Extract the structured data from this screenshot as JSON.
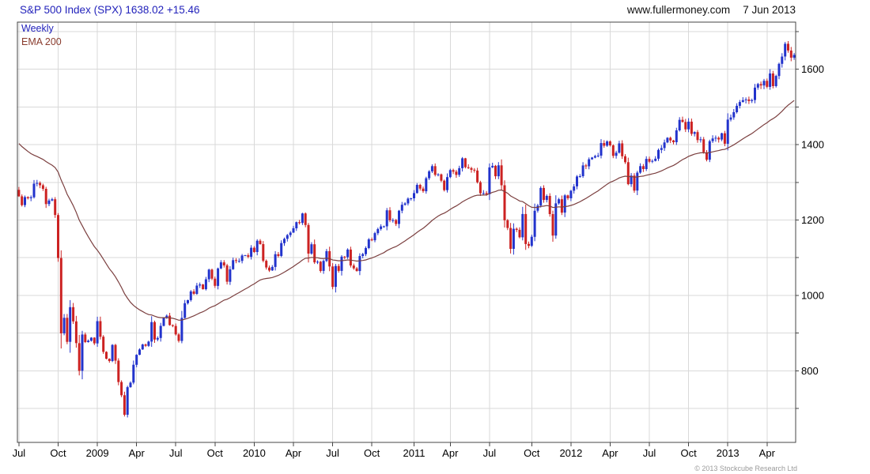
{
  "header": {
    "title": "S&P 500 Index (SPX) 1638.02 +15.46",
    "website": "www.fullermoney.com",
    "date": "7 Jun 2013"
  },
  "legend": {
    "weekly": "Weekly",
    "ema": "EMA 200"
  },
  "footer": {
    "copyright": "© 2013 Stockcube Research Ltd"
  },
  "colors": {
    "up": "#2233cc",
    "down": "#cc2222",
    "ema": "#7b3f3f",
    "grid": "#d9d9d9",
    "axis_text": "#000000",
    "border": "#444444",
    "title_blue": "#2222bb",
    "copyright_gray": "#9a9a9a"
  },
  "chart_data": {
    "type": "candlestick",
    "title": "S&P 500 Index (SPX)",
    "interval": "Weekly",
    "last_price": 1638.02,
    "change": "+15.46",
    "ylim": [
      610,
      1725
    ],
    "y_gridline_step": 100,
    "y_label_values": [
      800,
      1000,
      1200,
      1400,
      1600
    ],
    "overlay": {
      "label": "EMA 200",
      "period_weeks": 40,
      "seed_value": 1410
    },
    "x_ticks": [
      {
        "index": 0,
        "label": "Jul"
      },
      {
        "index": 13,
        "label": "Oct"
      },
      {
        "index": 26,
        "label": "2009"
      },
      {
        "index": 39,
        "label": "Apr"
      },
      {
        "index": 52,
        "label": "Jul"
      },
      {
        "index": 65,
        "label": "Oct"
      },
      {
        "index": 78,
        "label": "2010"
      },
      {
        "index": 91,
        "label": "Apr"
      },
      {
        "index": 104,
        "label": "Jul"
      },
      {
        "index": 117,
        "label": "Oct"
      },
      {
        "index": 131,
        "label": "2011"
      },
      {
        "index": 143,
        "label": "Apr"
      },
      {
        "index": 156,
        "label": "Jul"
      },
      {
        "index": 170,
        "label": "Oct"
      },
      {
        "index": 183,
        "label": "2012"
      },
      {
        "index": 196,
        "label": "Apr"
      },
      {
        "index": 209,
        "label": "Jul"
      },
      {
        "index": 222,
        "label": "Oct"
      },
      {
        "index": 235,
        "label": "2013"
      },
      {
        "index": 248,
        "label": "Apr"
      }
    ],
    "first_open": 1280.0,
    "weekly_closes": [
      1262.9,
      1239.49,
      1260.68,
      1257.76,
      1260.31,
      1296.32,
      1298.2,
      1292.2,
      1282.83,
      1242.31,
      1251.7,
      1255.08,
      1213.27,
      1099.23,
      899.22,
      940.55,
      876.77,
      968.75,
      930.99,
      873.29,
      800.03,
      896.24,
      876.07,
      879.73,
      887.88,
      872.8,
      931.8,
      890.35,
      850.12,
      831.95,
      825.88,
      868.6,
      826.84,
      770.05,
      735.09,
      683.38,
      756.55,
      768.54,
      815.94,
      842.5,
      856.56,
      869.6,
      866.23,
      877.52,
      929.23,
      882.88,
      887.0,
      919.14,
      940.09,
      946.21,
      921.23,
      918.9,
      896.42,
      879.13,
      940.38,
      979.26,
      987.48,
      1010.48,
      1004.09,
      1026.13,
      1028.93,
      1016.4,
      1042.73,
      1068.3,
      1044.38,
      1025.21,
      1071.49,
      1087.68,
      1079.6,
      1036.19,
      1069.3,
      1093.48,
      1091.38,
      1091.49,
      1105.98,
      1106.41,
      1102.47,
      1126.48,
      1115.1,
      1144.98,
      1136.03,
      1091.76,
      1073.87,
      1066.19,
      1075.51,
      1109.17,
      1104.49,
      1138.7,
      1149.99,
      1159.9,
      1166.59,
      1178.1,
      1194.37,
      1192.13,
      1217.28,
      1186.69,
      1110.88,
      1135.68,
      1087.69,
      1089.41,
      1064.88,
      1091.6,
      1117.51,
      1076.76,
      1022.58,
      1077.96,
      1064.88,
      1102.66,
      1101.6,
      1121.64,
      1079.25,
      1071.69,
      1064.59,
      1104.51,
      1109.55,
      1125.59,
      1148.67,
      1146.24,
      1165.15,
      1176.19,
      1183.08,
      1183.26,
      1225.85,
      1199.21,
      1199.73,
      1189.4,
      1224.71,
      1240.4,
      1243.91,
      1256.77,
      1257.64,
      1271.5,
      1293.24,
      1283.35,
      1276.34,
      1310.87,
      1329.15,
      1343.01,
      1319.88,
      1321.15,
      1304.28,
      1279.21,
      1313.8,
      1332.41,
      1328.17,
      1319.68,
      1337.38,
      1363.61,
      1340.2,
      1337.77,
      1333.27,
      1331.1,
      1300.16,
      1270.98,
      1271.5,
      1268.45,
      1339.67,
      1343.8,
      1316.14,
      1345.02,
      1292.28,
      1199.38,
      1178.81,
      1123.53,
      1176.8,
      1173.97,
      1154.23,
      1216.01,
      1136.43,
      1131.42,
      1155.46,
      1224.58,
      1238.25,
      1285.09,
      1253.23,
      1263.85,
      1215.65,
      1158.67,
      1244.28,
      1255.19,
      1219.66,
      1265.33,
      1257.6,
      1277.81,
      1289.09,
      1315.38,
      1316.33,
      1344.9,
      1342.64,
      1361.23,
      1365.74,
      1369.63,
      1370.87,
      1404.17,
      1397.11,
      1408.47,
      1398.08,
      1370.26,
      1378.53,
      1403.36,
      1369.1,
      1353.39,
      1295.22,
      1317.82,
      1278.04,
      1325.66,
      1342.84,
      1335.02,
      1362.16,
      1354.68,
      1356.78,
      1362.66,
      1385.97,
      1390.99,
      1405.87,
      1418.16,
      1411.13,
      1406.58,
      1437.92,
      1465.77,
      1460.15,
      1440.67,
      1460.93,
      1428.59,
      1433.19,
      1411.94,
      1414.2,
      1379.85,
      1359.88,
      1409.15,
      1416.18,
      1418.07,
      1413.58,
      1430.15,
      1402.43,
      1466.47,
      1472.05,
      1485.98,
      1502.96,
      1513.17,
      1517.93,
      1519.79,
      1515.6,
      1518.2,
      1551.18,
      1560.7,
      1556.89,
      1569.19,
      1553.28,
      1588.85,
      1555.25,
      1582.24,
      1614.42,
      1633.7,
      1667.47,
      1649.6,
      1630.74,
      1638.02
    ]
  }
}
